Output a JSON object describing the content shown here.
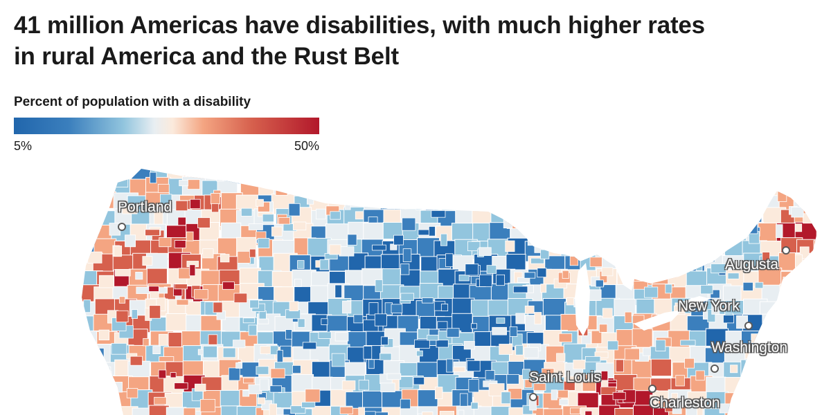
{
  "headline": {
    "line1": "41 million Americas have disabilities, with much higher rates",
    "line2": "in rural America and the Rust Belt"
  },
  "legend": {
    "title": "Percent of population with a disability",
    "min_label": "5%",
    "max_label": "50%",
    "min_value": 5,
    "max_value": 50,
    "colors": [
      "#2166ac",
      "#3b7fbd",
      "#92c5de",
      "#e8eef2",
      "#fbeadc",
      "#f4a582",
      "#d6604d",
      "#b2182b"
    ]
  },
  "cities": [
    {
      "id": "portland",
      "name": "Portland"
    },
    {
      "id": "augusta",
      "name": "Augusta"
    },
    {
      "id": "new-york",
      "name": "New York"
    },
    {
      "id": "washington",
      "name": "Washington"
    },
    {
      "id": "saint-louis",
      "name": "Saint Louis"
    },
    {
      "id": "charleston",
      "name": "Charleston"
    }
  ],
  "map": {
    "background_color": "#ffffff",
    "border_color": "#ffffff"
  }
}
